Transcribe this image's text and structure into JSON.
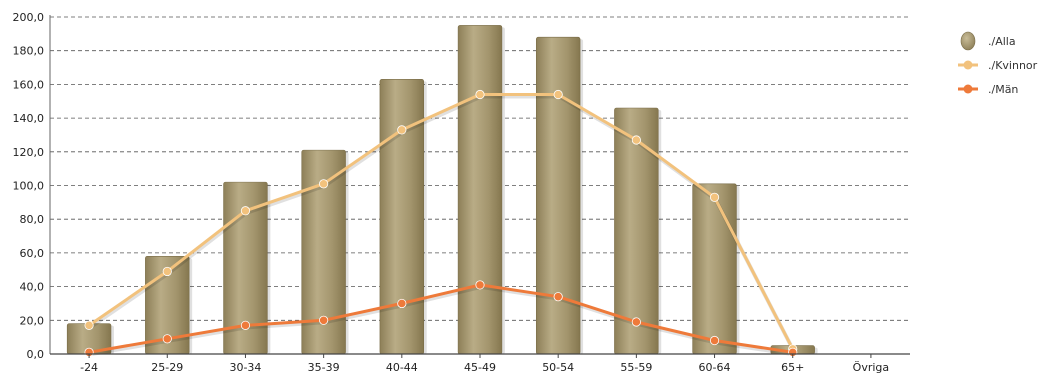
{
  "chart_data": {
    "type": "bar",
    "categories": [
      "-24",
      "25-29",
      "30-34",
      "35-39",
      "40-44",
      "45-49",
      "50-54",
      "55-59",
      "60-64",
      "65+",
      "Övriga"
    ],
    "ylim": [
      0,
      200
    ],
    "yticks": [
      "0,0",
      "20,0",
      "40,0",
      "60,0",
      "80,0",
      "100,0",
      "120,0",
      "140,0",
      "160,0",
      "180,0",
      "200,0"
    ],
    "grid": true,
    "legend_position": "top-right",
    "series": [
      {
        "name": "./Alla",
        "type": "bar",
        "color": "#a89a72",
        "values": [
          18,
          58,
          102,
          121,
          163,
          195,
          188,
          146,
          101,
          5,
          null
        ]
      },
      {
        "name": "./Kvinnor",
        "type": "line",
        "color": "#f2c27d",
        "values": [
          17,
          49,
          85,
          101,
          133,
          154,
          154,
          127,
          93,
          3,
          null
        ]
      },
      {
        "name": "./Män",
        "type": "line",
        "color": "#ee7a3a",
        "values": [
          1,
          9,
          17,
          20,
          30,
          41,
          34,
          19,
          8,
          1,
          null
        ]
      }
    ]
  }
}
